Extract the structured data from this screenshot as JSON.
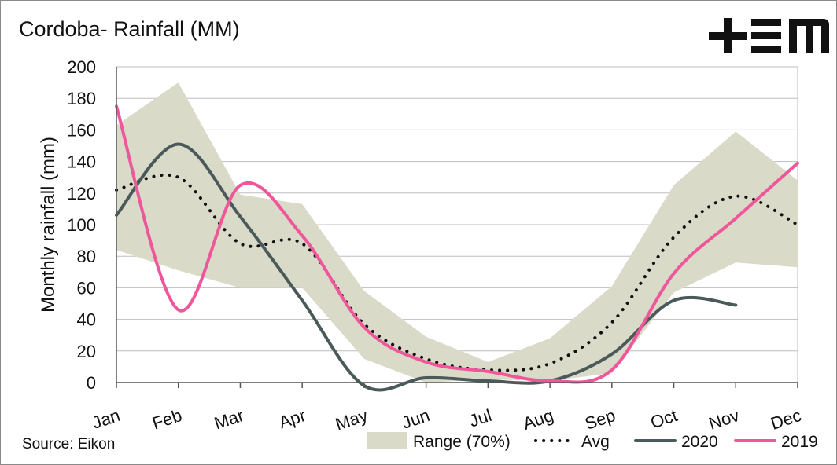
{
  "chart_data": {
    "type": "line",
    "title": "Cordoba- Rainfall (MM)",
    "ylabel": "Monthly rainfall (mm)",
    "xlabel": "",
    "source": "Source: Eikon",
    "logo": "+EM",
    "categories": [
      "Jan",
      "Feb",
      "Mar",
      "Apr",
      "May",
      "Jun",
      "Jul",
      "Aug",
      "Sep",
      "Oct",
      "Nov",
      "Dec"
    ],
    "ylim": [
      0,
      200
    ],
    "yticks": [
      0,
      20,
      40,
      60,
      80,
      100,
      120,
      140,
      160,
      180,
      200
    ],
    "grid": true,
    "legend_position": "bottom",
    "range": {
      "name": "Range (70%)",
      "color": "#d9dac8",
      "upper": [
        163,
        190,
        119,
        113,
        58,
        29,
        13,
        28,
        61,
        125,
        159,
        128
      ],
      "lower": [
        84,
        71,
        60,
        60,
        15,
        0,
        2,
        1,
        6,
        57,
        76,
        73
      ]
    },
    "series": [
      {
        "name": "Avg",
        "style": "dotted",
        "color": "#111111",
        "values": [
          122,
          130,
          88,
          88,
          37,
          15,
          8,
          12,
          38,
          92,
          118,
          100
        ]
      },
      {
        "name": "2020",
        "style": "solid",
        "color": "#4a5a5a",
        "values": [
          106,
          151,
          105,
          52,
          -2,
          3,
          1,
          1,
          18,
          52,
          49,
          null
        ]
      },
      {
        "name": "2019",
        "style": "solid",
        "color": "#f0569a",
        "values": [
          175,
          46,
          125,
          93,
          35,
          13,
          7,
          1,
          8,
          69,
          104,
          139
        ]
      }
    ]
  }
}
